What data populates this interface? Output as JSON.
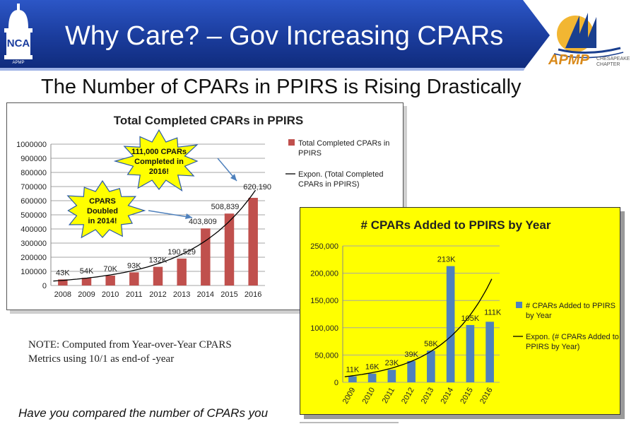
{
  "header": {
    "title": "Why Care? – Gov Increasing CPARs",
    "logo_left_text": "NCA",
    "logo_left_sub": "APMP",
    "logo_right_brand": "APMP",
    "logo_right_chapter": "CHESAPEAKE CHAPTER"
  },
  "subtitle": "The Number of CPARs in PPIRS is Rising Drastically",
  "note": "NOTE: Computed from Year-over-Year CPARS Metrics using 10/1 as end-of -year",
  "bottom_question": "Have you compared the number of CPARs you",
  "colors": {
    "banner": "#1b3d9e",
    "bar1": "#c0504d",
    "bar2": "#4f81bd",
    "chart2_bg": "#ffff00"
  },
  "chart_data": [
    {
      "type": "bar",
      "title": "Total Completed CPARs in PPIRS",
      "categories": [
        "2008",
        "2009",
        "2010",
        "2011",
        "2012",
        "2013",
        "2014",
        "2015",
        "2016"
      ],
      "series": [
        {
          "name": "Total Completed CPARs in PPIRS",
          "values": [
            43000,
            54000,
            70000,
            93000,
            132000,
            190529,
            403809,
            508839,
            620190
          ]
        }
      ],
      "data_labels": [
        "43K",
        "54K",
        "70K",
        "93K",
        "132K",
        "190,529",
        "403,809",
        "508,839",
        "620,190"
      ],
      "trendline": {
        "name": "Expon. (Total Completed CPARs in PPIRS)",
        "type": "exponential"
      },
      "ylim": [
        0,
        1000000
      ],
      "yticks": [
        "0",
        "100000",
        "200000",
        "300000",
        "400000",
        "500000",
        "600000",
        "700000",
        "800000",
        "900000",
        "1000000"
      ],
      "grid": true,
      "legend_position": "right",
      "callouts": [
        {
          "text": [
            "111,000 CPARs",
            "Completed in",
            "2016!"
          ]
        },
        {
          "text": [
            "CPARS",
            "Doubled",
            "in 2014!"
          ]
        }
      ]
    },
    {
      "type": "bar",
      "title": "# CPARs Added to PPIRS by Year",
      "categories": [
        "2009",
        "2010",
        "2011",
        "2012",
        "2013",
        "2014",
        "2015",
        "2016"
      ],
      "series": [
        {
          "name": "# CPARs Added to PPIRS by Year",
          "values": [
            11000,
            16000,
            23000,
            39000,
            58000,
            213000,
            105000,
            111000
          ]
        }
      ],
      "data_labels": [
        "11K",
        "16K",
        "23K",
        "39K",
        "58K",
        "213K",
        "105K",
        "111K"
      ],
      "trendline": {
        "name": "Expon. (# CPARs Added to PPIRS by Year)",
        "type": "exponential"
      },
      "ylim": [
        0,
        250000
      ],
      "yticks": [
        "0",
        "50,000",
        "100,000",
        "150,000",
        "200,000",
        "250,000"
      ],
      "grid": true,
      "legend_position": "right"
    }
  ]
}
